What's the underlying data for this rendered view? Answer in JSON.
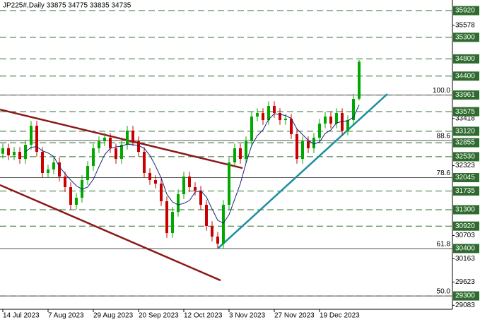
{
  "chart_data": {
    "type": "candlestick",
    "title": "JP225#,Daily  33875 34775 33835 34735",
    "categories": [
      "14 Jul 2023",
      null,
      null,
      null,
      null,
      null,
      null,
      null,
      "7 Aug 2023",
      null,
      null,
      null,
      null,
      null,
      null,
      null,
      "29 Aug 2023",
      null,
      null,
      null,
      null,
      null,
      null,
      null,
      "20 Sep 2023",
      null,
      null,
      null,
      null,
      null,
      null,
      null,
      "12 Oct 2023",
      null,
      null,
      null,
      null,
      null,
      null,
      null,
      "3 Nov 2023",
      null,
      null,
      null,
      null,
      null,
      null,
      null,
      "27 Nov 2023",
      null,
      null,
      null,
      null,
      null,
      null,
      null,
      "19 Dec 2023",
      null,
      null,
      null,
      null,
      null,
      null,
      null
    ],
    "open": [
      32600,
      32725,
      32561,
      32643,
      32479,
      32807,
      33249,
      32643,
      32152,
      32234,
      32398,
      32070,
      31824,
      31414,
      31578,
      31988,
      32316,
      32725,
      32889,
      32971,
      32725,
      32479,
      32807,
      33135,
      32889,
      32643,
      32152,
      31988,
      31906,
      31496,
      30759,
      31250,
      31660,
      32070,
      31824,
      31742,
      31414,
      30923,
      30677,
      30513,
      31414,
      32398,
      32725,
      32479,
      32889,
      33462,
      33544,
      33380,
      33708,
      33544,
      33380,
      33413,
      33053,
      32479,
      32889,
      32725,
      32971,
      33298,
      33462,
      33298,
      33544,
      33135,
      33380,
      33875
    ],
    "high": [
      32835,
      32835,
      32753,
      32753,
      32917,
      33359,
      33359,
      32753,
      32344,
      32508,
      32508,
      32180,
      31934,
      31688,
      32098,
      32426,
      32835,
      32999,
      33081,
      33081,
      32835,
      32917,
      33245,
      33245,
      32999,
      32753,
      32262,
      32098,
      32016,
      31606,
      31360,
      31770,
      32180,
      32180,
      31934,
      31852,
      31524,
      31033,
      30787,
      31524,
      32508,
      32835,
      32835,
      32999,
      33572,
      33654,
      33654,
      33818,
      33818,
      33654,
      33523,
      33523,
      33163,
      32999,
      32999,
      33081,
      33408,
      33572,
      33572,
      33654,
      33654,
      33490,
      33982,
      34775
    ],
    "low": [
      32490,
      32451,
      32451,
      32369,
      32369,
      32697,
      32533,
      32042,
      32042,
      32124,
      31960,
      31714,
      31304,
      31304,
      31468,
      31878,
      32206,
      32615,
      32779,
      32615,
      32369,
      32369,
      32697,
      32779,
      32533,
      32042,
      31878,
      31796,
      31386,
      30649,
      30649,
      31140,
      31550,
      31714,
      31632,
      31304,
      30813,
      30567,
      30403,
      30403,
      31304,
      32288,
      32369,
      32369,
      32779,
      33352,
      33270,
      33270,
      33434,
      33270,
      33270,
      32943,
      32369,
      32369,
      32615,
      32615,
      32861,
      33188,
      33188,
      33188,
      33025,
      33025,
      33270,
      33835
    ],
    "close": [
      32725,
      32561,
      32643,
      32479,
      32807,
      33249,
      32643,
      32152,
      32234,
      32398,
      32070,
      31824,
      31414,
      31578,
      31988,
      32316,
      32725,
      32889,
      32971,
      32725,
      32479,
      32807,
      33135,
      32889,
      32643,
      32152,
      31988,
      31906,
      31496,
      30759,
      31250,
      31660,
      32070,
      31824,
      31742,
      31414,
      30923,
      30677,
      30513,
      31414,
      32398,
      32725,
      32479,
      32889,
      33462,
      33544,
      33380,
      33708,
      33544,
      33380,
      33413,
      33053,
      32479,
      32889,
      32725,
      32971,
      33298,
      33462,
      33298,
      33544,
      33135,
      33380,
      33872,
      34735
    ],
    "up_color": "#00a800",
    "down_color": "#c80000",
    "ma_color": "#1a237e",
    "ylim": [
      28990,
      36166
    ],
    "yticks": [
      35578,
      33418,
      32323,
      30703,
      30163,
      29623,
      29083
    ],
    "levels": [
      35920,
      35300,
      34800,
      34400,
      33961,
      33575,
      33120,
      32855,
      32530,
      32045,
      31735,
      31300,
      30920,
      30400,
      29300
    ],
    "level_color": "#2f6b2f",
    "fib_levels": [
      {
        "value": 33961,
        "label": "100.0"
      },
      {
        "value": 32905,
        "label": "88.6"
      },
      {
        "value": 32045,
        "label": "78.6"
      },
      {
        "value": 30400,
        "label": "61.8"
      },
      {
        "value": 29300,
        "label": "50.0"
      }
    ],
    "trendlines": [
      {
        "color": "#8b1a1a",
        "points": [
          [
            -0.5,
            33626
          ],
          [
            42.4,
            32266
          ]
        ]
      },
      {
        "color": "#8b1a1a",
        "points": [
          [
            -0.5,
            31873
          ],
          [
            38.5,
            29661
          ]
        ]
      },
      {
        "color": "#1a8fa0",
        "points": [
          [
            38,
            30398
          ],
          [
            68,
            33987
          ]
        ]
      }
    ]
  }
}
